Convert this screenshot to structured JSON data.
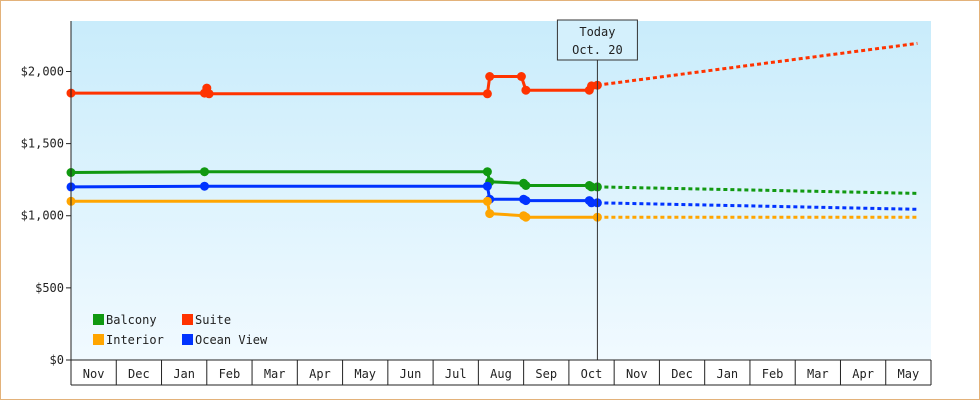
{
  "chart_data": {
    "type": "line",
    "title": "",
    "xlabel": "",
    "ylabel": "",
    "ylim": [
      0,
      2350
    ],
    "yticks": [
      {
        "value": 0,
        "label": "$0"
      },
      {
        "value": 500,
        "label": "$500"
      },
      {
        "value": 1000,
        "label": "$1,000"
      },
      {
        "value": 1500,
        "label": "$1,500"
      },
      {
        "value": 2000,
        "label": "$2,000"
      }
    ],
    "months": [
      "Nov",
      "Dec",
      "Jan",
      "Feb",
      "Mar",
      "Apr",
      "May",
      "Jun",
      "Jul",
      "Aug",
      "Sep",
      "Oct",
      "Nov",
      "Dec",
      "Jan",
      "Feb",
      "Mar",
      "Apr",
      "May"
    ],
    "today": {
      "line1": "Today",
      "line2": "Oct. 20",
      "month_index": 11.63
    },
    "legend": [
      "Balcony",
      "Suite",
      "Interior",
      "Ocean View"
    ],
    "series": [
      {
        "name": "Suite",
        "color": "#ff3300",
        "points": [
          [
            0,
            1850
          ],
          [
            2.95,
            1850
          ],
          [
            3.0,
            1885
          ],
          [
            3.05,
            1845
          ],
          [
            9.2,
            1845
          ],
          [
            9.25,
            1965
          ],
          [
            9.95,
            1965
          ],
          [
            10.05,
            1870
          ],
          [
            10.15,
            1870
          ],
          [
            11.45,
            1870
          ],
          [
            11.5,
            1900
          ],
          [
            11.63,
            1905
          ]
        ],
        "forecast": [
          [
            11.63,
            1905
          ],
          [
            18.7,
            2195
          ]
        ]
      },
      {
        "name": "Balcony",
        "color": "#119911",
        "points": [
          [
            0,
            1300
          ],
          [
            2.95,
            1305
          ],
          [
            9.2,
            1305
          ],
          [
            9.25,
            1235
          ],
          [
            10.0,
            1225
          ],
          [
            10.05,
            1210
          ],
          [
            11.45,
            1210
          ],
          [
            11.5,
            1200
          ],
          [
            11.63,
            1200
          ]
        ],
        "forecast": [
          [
            11.63,
            1200
          ],
          [
            18.7,
            1155
          ]
        ]
      },
      {
        "name": "Ocean View",
        "color": "#0033ff",
        "points": [
          [
            0,
            1200
          ],
          [
            2.95,
            1205
          ],
          [
            9.2,
            1205
          ],
          [
            9.25,
            1115
          ],
          [
            10.0,
            1115
          ],
          [
            10.05,
            1105
          ],
          [
            11.45,
            1105
          ],
          [
            11.5,
            1090
          ],
          [
            11.63,
            1090
          ]
        ],
        "forecast": [
          [
            11.63,
            1090
          ],
          [
            18.7,
            1045
          ]
        ]
      },
      {
        "name": "Interior",
        "color": "#ffa500",
        "points": [
          [
            0,
            1100
          ],
          [
            2.95,
            1100
          ],
          [
            9.2,
            1100
          ],
          [
            9.25,
            1015
          ],
          [
            10.0,
            1000
          ],
          [
            10.05,
            990
          ],
          [
            11.63,
            990
          ]
        ],
        "forecast": [
          [
            11.63,
            990
          ],
          [
            18.7,
            990
          ]
        ]
      }
    ]
  }
}
